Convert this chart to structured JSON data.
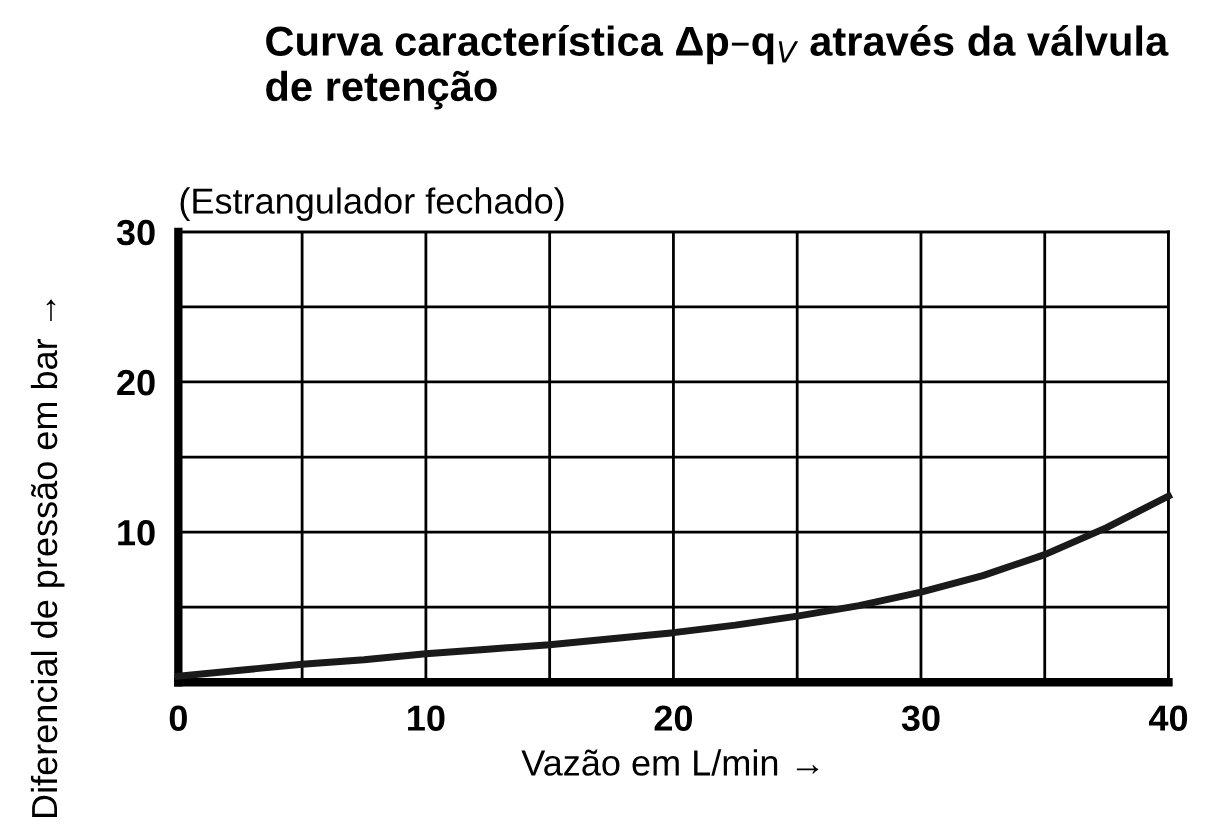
{
  "chart_data": {
    "type": "line",
    "title": "Curva característica Δp–q$_{V}$ através da válvula\nde retenção",
    "subtitle": "(Estrangulador fechado)",
    "xlabel": "Vazão em L/min →",
    "ylabel": "Diferencial de pressão em bar →",
    "x": [
      0,
      2.5,
      5,
      7.5,
      10,
      12.5,
      15,
      17.5,
      20,
      22.5,
      25,
      27.5,
      30,
      32.5,
      35,
      37.5,
      40
    ],
    "series": [
      {
        "color": "#1a1a1a",
        "values": [
          0.4,
          0.8,
          1.2,
          1.5,
          1.9,
          2.2,
          2.5,
          2.9,
          3.3,
          3.8,
          4.4,
          5.1,
          6.0,
          7.1,
          8.5,
          10.3,
          12.4
        ]
      }
    ],
    "xlim": [
      0,
      40
    ],
    "ylim": [
      0,
      30
    ],
    "xticks": [
      0,
      {
        "value": 5,
        "label": null
      },
      10,
      {
        "value": 15,
        "label": null
      },
      20,
      {
        "value": 25,
        "label": null
      },
      30,
      {
        "value": 35,
        "label": null
      },
      40
    ],
    "yticks": [
      {
        "value": 0,
        "label": null
      },
      {
        "value": 5,
        "label": null
      },
      10,
      {
        "value": 15,
        "label": null
      },
      20,
      {
        "value": 25,
        "label": null
      },
      30
    ],
    "grid": true,
    "marker": "none",
    "line_style": "solid",
    "legend": false
  }
}
